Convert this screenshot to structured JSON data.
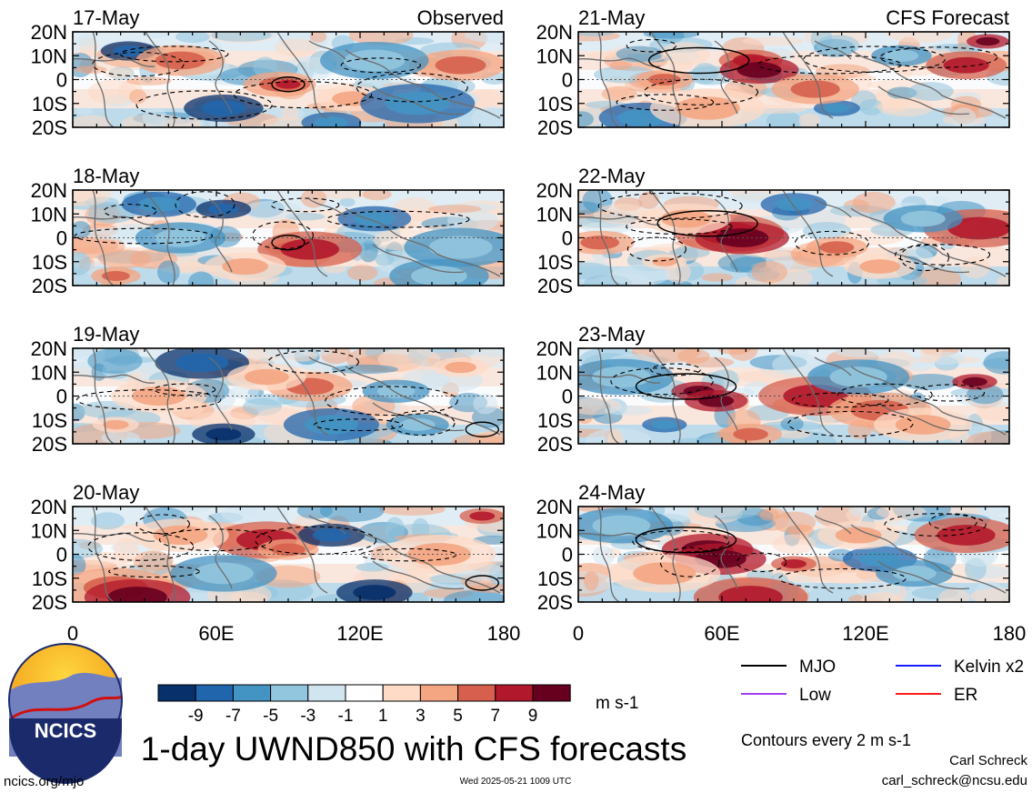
{
  "panel_titles": {
    "observed": "Observed",
    "forecast": "CFS Forecast"
  },
  "chart_data": [
    {
      "type": "heatmap",
      "panel": "Observed",
      "date": "17-May",
      "ylim": [
        "20S",
        "20N"
      ],
      "xlim": [
        "0",
        "180"
      ]
    },
    {
      "type": "heatmap",
      "panel": "Observed",
      "date": "18-May",
      "ylim": [
        "20S",
        "20N"
      ],
      "xlim": [
        "0",
        "180"
      ]
    },
    {
      "type": "heatmap",
      "panel": "Observed",
      "date": "19-May",
      "ylim": [
        "20S",
        "20N"
      ],
      "xlim": [
        "0",
        "180"
      ]
    },
    {
      "type": "heatmap",
      "panel": "Observed",
      "date": "20-May",
      "ylim": [
        "20S",
        "20N"
      ],
      "xlim": [
        "0",
        "180"
      ]
    },
    {
      "type": "heatmap",
      "panel": "CFS Forecast",
      "date": "21-May",
      "ylim": [
        "20S",
        "20N"
      ],
      "xlim": [
        "0",
        "180"
      ]
    },
    {
      "type": "heatmap",
      "panel": "CFS Forecast",
      "date": "22-May",
      "ylim": [
        "20S",
        "20N"
      ],
      "xlim": [
        "0",
        "180"
      ]
    },
    {
      "type": "heatmap",
      "panel": "CFS Forecast",
      "date": "23-May",
      "ylim": [
        "20S",
        "20N"
      ],
      "xlim": [
        "0",
        "180"
      ]
    },
    {
      "type": "heatmap",
      "panel": "CFS Forecast",
      "date": "24-May",
      "ylim": [
        "20S",
        "20N"
      ],
      "xlim": [
        "0",
        "180"
      ]
    }
  ],
  "y_ticks": [
    "20N",
    "10N",
    "0",
    "10S",
    "20S"
  ],
  "x_ticks": [
    "0",
    "60E",
    "120E",
    "180"
  ],
  "colorbar": {
    "colors": [
      "#08306b",
      "#2166ac",
      "#4393c3",
      "#92c5de",
      "#d1e5f0",
      "#ffffff",
      "#fddbc7",
      "#f4a582",
      "#d6604d",
      "#b2182b",
      "#67001f"
    ],
    "tick_labels": [
      "-9",
      "-7",
      "-5",
      "-3",
      "-1",
      "1",
      "3",
      "5",
      "7",
      "9"
    ],
    "units": "m s-1"
  },
  "legend": [
    {
      "label": "MJO",
      "color": "#000000"
    },
    {
      "label": "Kelvin x2",
      "color": "#1a1aff"
    },
    {
      "label": "Low",
      "color": "#a040f0"
    },
    {
      "label": "ER",
      "color": "#ff1a1a"
    }
  ],
  "contour_note": "Contours every 2 m s-1",
  "title": "1-day UWND850 with CFS forecasts",
  "logo_text": "NCICS",
  "url": "ncics.org/mjo",
  "timestamp": "Wed 2025-05-21 1009 UTC",
  "author": "Carl Schreck",
  "email": "carl_schreck@ncsu.edu"
}
